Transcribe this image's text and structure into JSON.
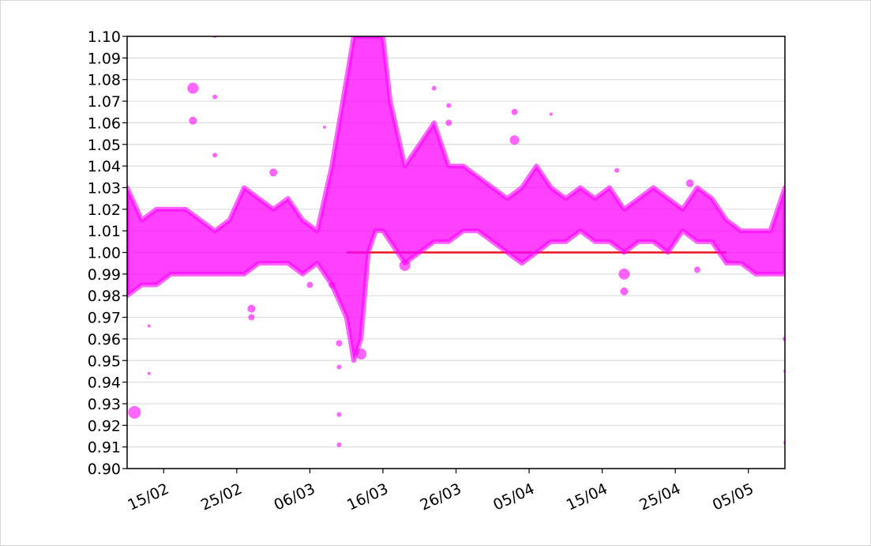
{
  "chart_data": {
    "type": "scatter",
    "color": "#ff00ff",
    "line_color": "#e8131b",
    "grid": true,
    "xlim": [
      "10/02",
      "10/05"
    ],
    "xticks": [
      "15/02",
      "25/02",
      "06/03",
      "16/03",
      "26/03",
      "05/04",
      "15/04",
      "25/04",
      "05/05"
    ],
    "ylim": [
      0.9,
      1.1
    ],
    "yticks": [
      {
        "value": 0.9,
        "label": "0.90"
      },
      0.91,
      0.92,
      0.93,
      0.94,
      0.95,
      0.96,
      0.97,
      0.98,
      0.99,
      {
        "value": 1.0,
        "label": "1.00"
      },
      1.01,
      1.02,
      1.03,
      1.04,
      1.05,
      1.06,
      1.07,
      1.08,
      1.09,
      {
        "value": 1.1,
        "label": "1.10"
      }
    ],
    "band": {
      "x": [
        "10/02",
        "12/02",
        "14/02",
        "16/02",
        "18/02",
        "20/02",
        "22/02",
        "24/02",
        "26/02",
        "28/02",
        "01/03",
        "03/03",
        "05/03",
        "07/03",
        "09/03",
        "11/03",
        "12/03",
        "13/03",
        "14/03",
        "15/03",
        "16/03",
        "17/03",
        "19/03",
        "21/03",
        "23/03",
        "25/03",
        "27/03",
        "29/03",
        "31/03",
        "02/04",
        "04/04",
        "06/04",
        "08/04",
        "10/04",
        "12/04",
        "14/04",
        "16/04",
        "18/04",
        "20/04",
        "22/04",
        "24/04",
        "26/04",
        "28/04",
        "30/04",
        "02/05",
        "04/05",
        "06/05",
        "08/05",
        "10/05"
      ],
      "upper": [
        1.03,
        1.015,
        1.02,
        1.02,
        1.02,
        1.015,
        1.01,
        1.015,
        1.03,
        1.025,
        1.02,
        1.025,
        1.015,
        1.01,
        1.04,
        1.08,
        1.1,
        1.1,
        1.1,
        1.1,
        1.1,
        1.07,
        1.04,
        1.05,
        1.06,
        1.04,
        1.04,
        1.035,
        1.03,
        1.025,
        1.03,
        1.04,
        1.03,
        1.025,
        1.03,
        1.025,
        1.03,
        1.02,
        1.025,
        1.03,
        1.025,
        1.02,
        1.03,
        1.025,
        1.015,
        1.01,
        1.01,
        1.01,
        1.03
      ],
      "lower": [
        0.98,
        0.985,
        0.985,
        0.99,
        0.99,
        0.99,
        0.99,
        0.99,
        0.99,
        0.995,
        0.995,
        0.995,
        0.99,
        0.995,
        0.985,
        0.97,
        0.95,
        0.96,
        1.0,
        1.01,
        1.01,
        1.005,
        0.995,
        1.0,
        1.005,
        1.005,
        1.01,
        1.01,
        1.005,
        1.0,
        0.995,
        1.0,
        1.005,
        1.005,
        1.01,
        1.005,
        1.005,
        1.0,
        1.005,
        1.005,
        1.0,
        1.01,
        1.005,
        1.005,
        0.995,
        0.995,
        0.99,
        0.99,
        0.99
      ]
    },
    "points": {
      "x": [
        "11/02",
        "13/02",
        "13/02",
        "19/02",
        "19/02",
        "22/02",
        "22/02",
        "22/02",
        "27/02",
        "27/02",
        "01/03",
        "10/03",
        "10/03",
        "10/03",
        "10/03",
        "09/03",
        "13/03",
        "08/03",
        "19/03",
        "23/03",
        "25/03",
        "25/03",
        "03/04",
        "03/04",
        "08/04",
        "18/04",
        "18/04",
        "17/04",
        "27/04",
        "28/04",
        "10/05",
        "10/05",
        "10/05",
        "06/03"
      ],
      "values": [
        0.926,
        0.966,
        0.944,
        1.076,
        1.061,
        1.072,
        1.045,
        1.1,
        0.974,
        0.97,
        1.037,
        0.958,
        0.947,
        0.925,
        0.911,
        0.985,
        0.953,
        1.058,
        0.994,
        1.076,
        1.068,
        1.06,
        1.065,
        1.052,
        1.064,
        0.99,
        0.982,
        1.038,
        1.032,
        0.992,
        0.96,
        0.945,
        0.912,
        0.985
      ],
      "sizes": [
        8,
        2,
        2,
        7,
        5,
        3,
        3,
        2,
        5,
        4,
        5,
        4,
        3,
        3,
        3,
        4,
        7,
        2,
        7,
        3,
        3,
        4,
        4,
        6,
        2,
        7,
        5,
        3,
        5,
        4,
        3,
        2,
        2,
        4
      ]
    },
    "reference": {
      "x": [
        "11/03",
        "02/05"
      ],
      "value": 1.0
    }
  }
}
